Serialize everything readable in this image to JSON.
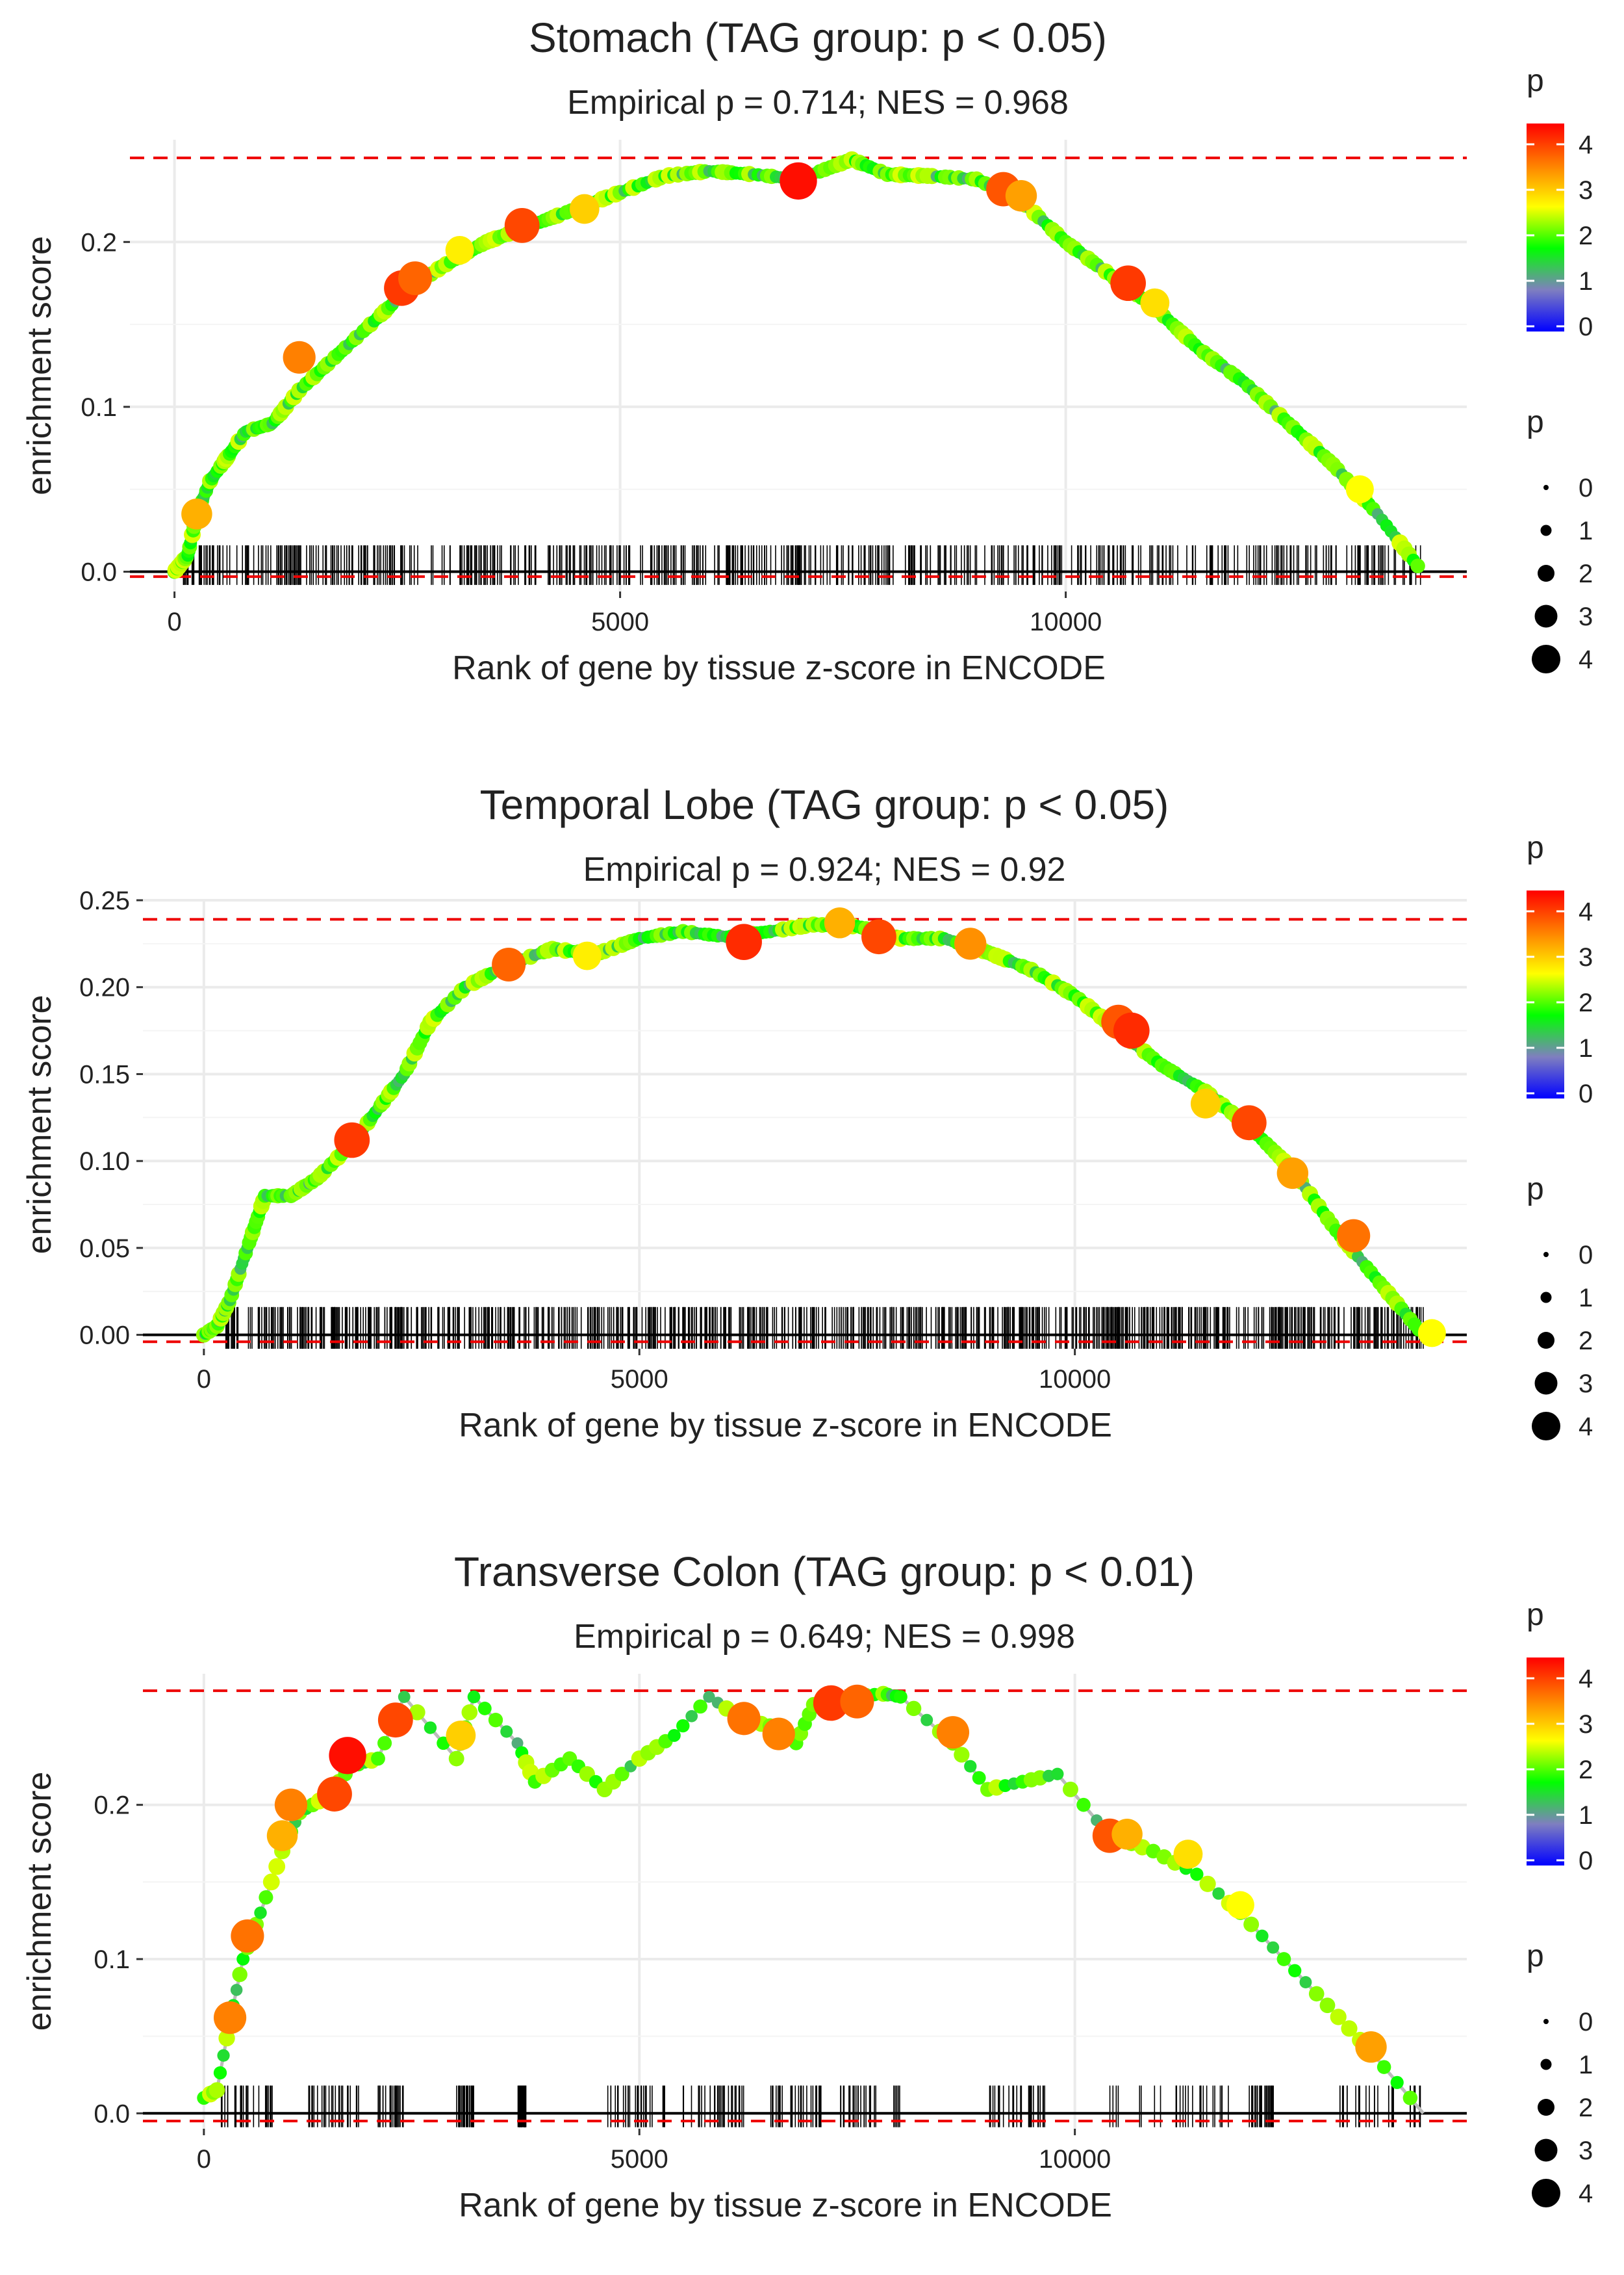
{
  "chart_data": [
    {
      "type": "line",
      "title": "Stomach (TAG group: p < 0.05)",
      "subtitle": "Empirical p = 0.714; NES = 0.968",
      "xlabel": "Rank of gene by tissue z-score in ENCODE",
      "ylabel": "enrichment score",
      "xlim": [
        -500,
        14500
      ],
      "ylim": [
        -0.012,
        0.262
      ],
      "x_ticks": [
        0,
        5000,
        10000
      ],
      "x_tick_labels": [
        "0",
        "5000",
        "10000"
      ],
      "y_ticks": [
        0,
        0.1,
        0.2
      ],
      "y_tick_labels": [
        "0.0",
        "0.1",
        "0.2"
      ],
      "max_es_line": 0.251,
      "min_es_line": -0.003,
      "grid": true,
      "curve": [
        [
          0,
          0
        ],
        [
          150,
          0.01
        ],
        [
          250,
          0.035
        ],
        [
          400,
          0.055
        ],
        [
          600,
          0.07
        ],
        [
          800,
          0.085
        ],
        [
          1100,
          0.09
        ],
        [
          1400,
          0.11
        ],
        [
          1800,
          0.13
        ],
        [
          2200,
          0.15
        ],
        [
          2600,
          0.17
        ],
        [
          3000,
          0.185
        ],
        [
          3500,
          0.2
        ],
        [
          4000,
          0.21
        ],
        [
          4500,
          0.22
        ],
        [
          5000,
          0.23
        ],
        [
          5500,
          0.24
        ],
        [
          6000,
          0.243
        ],
        [
          6500,
          0.241
        ],
        [
          7000,
          0.238
        ],
        [
          7600,
          0.25
        ],
        [
          8000,
          0.241
        ],
        [
          8500,
          0.24
        ],
        [
          9000,
          0.238
        ],
        [
          9500,
          0.225
        ],
        [
          10000,
          0.2
        ],
        [
          10500,
          0.18
        ],
        [
          11000,
          0.16
        ],
        [
          11500,
          0.135
        ],
        [
          12000,
          0.115
        ],
        [
          12500,
          0.09
        ],
        [
          13000,
          0.065
        ],
        [
          13500,
          0.035
        ],
        [
          14000,
          0
        ]
      ],
      "highlight_points": [
        [
          250,
          0.035,
          3.5
        ],
        [
          1400,
          0.13,
          3.8
        ],
        [
          2550,
          0.172,
          4.3
        ],
        [
          2700,
          0.178,
          4.0
        ],
        [
          3200,
          0.195,
          3.1
        ],
        [
          3900,
          0.21,
          4.2
        ],
        [
          4600,
          0.22,
          3.3
        ],
        [
          7000,
          0.237,
          4.6
        ],
        [
          9300,
          0.232,
          4.1
        ],
        [
          9500,
          0.228,
          3.6
        ],
        [
          10700,
          0.175,
          4.3
        ],
        [
          11000,
          0.163,
          3.2
        ],
        [
          13300,
          0.05,
          3.0
        ]
      ],
      "rug_count": 560,
      "rug_seed": 7,
      "rug_range": [
        100,
        14000
      ],
      "rug_height": 0.016
    },
    {
      "type": "line",
      "title": "Temporal Lobe (TAG group: p < 0.05)",
      "subtitle": "Empirical p = 0.924; NES = 0.92",
      "xlabel": "Rank of gene by tissue z-score in ENCODE",
      "ylabel": "enrichment score",
      "xlim": [
        -700,
        14500
      ],
      "ylim": [
        -0.008,
        0.25
      ],
      "x_ticks": [
        0,
        5000,
        10000
      ],
      "x_tick_labels": [
        "0",
        "5000",
        "10000"
      ],
      "y_ticks": [
        0,
        0.05,
        0.1,
        0.15,
        0.2,
        0.25
      ],
      "y_tick_labels": [
        "0.00",
        "0.05",
        "0.10",
        "0.15",
        "0.20",
        "0.25"
      ],
      "max_es_line": 0.239,
      "min_es_line": -0.004,
      "grid": true,
      "curve": [
        [
          0,
          0
        ],
        [
          150,
          0.005
        ],
        [
          300,
          0.02
        ],
        [
          500,
          0.05
        ],
        [
          700,
          0.08
        ],
        [
          1000,
          0.08
        ],
        [
          1300,
          0.09
        ],
        [
          1700,
          0.11
        ],
        [
          2000,
          0.13
        ],
        [
          2300,
          0.15
        ],
        [
          2600,
          0.18
        ],
        [
          3000,
          0.2
        ],
        [
          3500,
          0.213
        ],
        [
          4000,
          0.222
        ],
        [
          4500,
          0.219
        ],
        [
          5000,
          0.228
        ],
        [
          5500,
          0.232
        ],
        [
          6000,
          0.229
        ],
        [
          6500,
          0.232
        ],
        [
          7000,
          0.236
        ],
        [
          7500,
          0.235
        ],
        [
          8000,
          0.228
        ],
        [
          8500,
          0.228
        ],
        [
          9000,
          0.22
        ],
        [
          9500,
          0.21
        ],
        [
          10000,
          0.195
        ],
        [
          10500,
          0.175
        ],
        [
          11000,
          0.155
        ],
        [
          11500,
          0.14
        ],
        [
          12000,
          0.12
        ],
        [
          12500,
          0.095
        ],
        [
          13000,
          0.06
        ],
        [
          13500,
          0.03
        ],
        [
          14000,
          0
        ]
      ],
      "highlight_points": [
        [
          1700,
          0.112,
          4.3
        ],
        [
          3500,
          0.213,
          4.0
        ],
        [
          4400,
          0.218,
          3.1
        ],
        [
          6200,
          0.226,
          4.4
        ],
        [
          7300,
          0.237,
          3.5
        ],
        [
          7750,
          0.229,
          4.2
        ],
        [
          8800,
          0.225,
          3.7
        ],
        [
          10500,
          0.18,
          4.1
        ],
        [
          10650,
          0.175,
          4.4
        ],
        [
          11500,
          0.133,
          3.3
        ],
        [
          12000,
          0.122,
          4.2
        ],
        [
          12500,
          0.093,
          3.6
        ],
        [
          13200,
          0.057,
          3.9
        ],
        [
          14100,
          0.001,
          3.0
        ]
      ],
      "rug_count": 800,
      "rug_seed": 13,
      "rug_range": [
        250,
        14000
      ],
      "rug_height": 0.016
    },
    {
      "type": "line",
      "title": "Transverse Colon (TAG group: p < 0.01)",
      "subtitle": "Empirical p = 0.649; NES = 0.998",
      "xlabel": "Rank of gene by tissue z-score in ENCODE",
      "ylabel": "enrichment score",
      "xlim": [
        -700,
        14500
      ],
      "ylim": [
        -0.01,
        0.285
      ],
      "x_ticks": [
        0,
        5000,
        10000
      ],
      "x_tick_labels": [
        "0",
        "5000",
        "10000"
      ],
      "y_ticks": [
        0,
        0.1,
        0.2
      ],
      "y_tick_labels": [
        "0.0",
        "0.1",
        "0.2"
      ],
      "max_es_line": 0.274,
      "min_es_line": -0.005,
      "grid": true,
      "curve": [
        [
          0,
          0.01
        ],
        [
          150,
          0.015
        ],
        [
          300,
          0.06
        ],
        [
          450,
          0.1
        ],
        [
          650,
          0.13
        ],
        [
          900,
          0.17
        ],
        [
          1100,
          0.195
        ],
        [
          1400,
          0.205
        ],
        [
          1700,
          0.225
        ],
        [
          2000,
          0.23
        ],
        [
          2300,
          0.27
        ],
        [
          2900,
          0.23
        ],
        [
          3100,
          0.27
        ],
        [
          3600,
          0.24
        ],
        [
          3800,
          0.215
        ],
        [
          4200,
          0.23
        ],
        [
          4600,
          0.21
        ],
        [
          5000,
          0.23
        ],
        [
          5400,
          0.245
        ],
        [
          5800,
          0.27
        ],
        [
          6200,
          0.255
        ],
        [
          6600,
          0.25
        ],
        [
          6800,
          0.24
        ],
        [
          7000,
          0.265
        ],
        [
          7400,
          0.27
        ],
        [
          7800,
          0.272
        ],
        [
          8000,
          0.27
        ],
        [
          8600,
          0.24
        ],
        [
          9000,
          0.21
        ],
        [
          9400,
          0.215
        ],
        [
          9800,
          0.22
        ],
        [
          10400,
          0.18
        ],
        [
          10900,
          0.17
        ],
        [
          11400,
          0.155
        ],
        [
          11900,
          0.13
        ],
        [
          12400,
          0.1
        ],
        [
          12900,
          0.07
        ],
        [
          13400,
          0.04
        ],
        [
          14000,
          0
        ]
      ],
      "highlight_points": [
        [
          300,
          0.062,
          3.8
        ],
        [
          500,
          0.115,
          3.9
        ],
        [
          1000,
          0.2,
          3.8
        ],
        [
          900,
          0.18,
          3.5
        ],
        [
          1500,
          0.207,
          4.2
        ],
        [
          1650,
          0.232,
          4.6
        ],
        [
          2200,
          0.255,
          4.2
        ],
        [
          2950,
          0.245,
          3.3
        ],
        [
          6200,
          0.256,
          3.9
        ],
        [
          6600,
          0.246,
          3.8
        ],
        [
          7200,
          0.266,
          4.3
        ],
        [
          7500,
          0.267,
          4.0
        ],
        [
          8600,
          0.247,
          3.8
        ],
        [
          10400,
          0.18,
          4.1
        ],
        [
          10600,
          0.181,
          3.5
        ],
        [
          11300,
          0.168,
          3.2
        ],
        [
          11900,
          0.135,
          3.0
        ],
        [
          13400,
          0.043,
          3.6
        ]
      ],
      "rug_count": 340,
      "rug_seed": 29,
      "rug_range": [
        150,
        14000
      ],
      "rug_clusters": [
        [
          200,
          800
        ],
        [
          1200,
          1800
        ],
        [
          2000,
          2300
        ],
        [
          2900,
          3100
        ],
        [
          3600,
          3700
        ],
        [
          4600,
          5300
        ],
        [
          5500,
          6200
        ],
        [
          6500,
          7100
        ],
        [
          7300,
          8000
        ],
        [
          9000,
          9700
        ],
        [
          10400,
          11800
        ],
        [
          12000,
          12300
        ],
        [
          13000,
          14000
        ]
      ],
      "rug_height": 0.018
    }
  ],
  "legend": {
    "color_title": "p",
    "color_ticks": [
      "0",
      "1",
      "2",
      "3",
      "4"
    ],
    "size_title": "p",
    "size_ticks": [
      "0",
      "1",
      "2",
      "3",
      "4"
    ],
    "gradient_colors": [
      "#0000ff",
      "#7f7fbf",
      "#00ff00",
      "#ffff00",
      "#ff8000",
      "#ff0000"
    ]
  },
  "colors": {
    "curve": "#bbbbbb",
    "zero_line": "#000000",
    "dashed": "#ee0000",
    "grid": "#ebebeb",
    "rug": "#000000"
  }
}
